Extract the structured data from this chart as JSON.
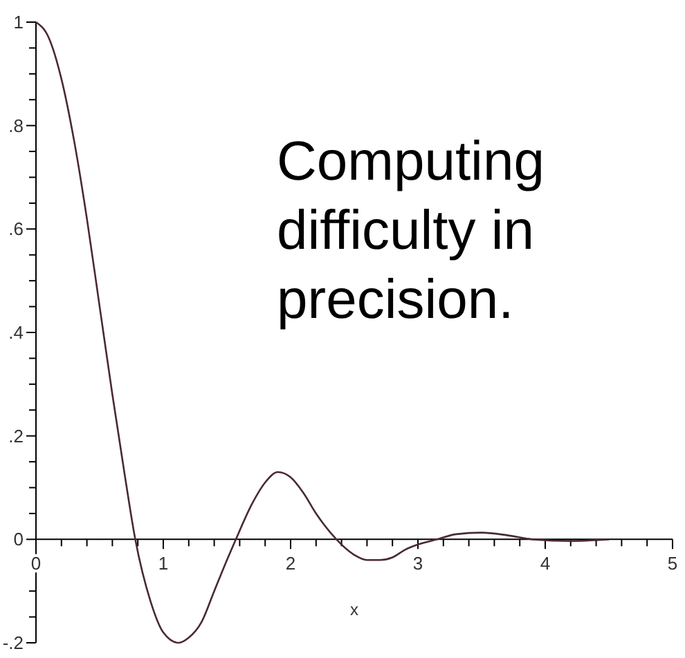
{
  "chart_data": {
    "type": "line",
    "xlabel": "x",
    "annotations": [
      "Computing",
      "difficulty in",
      "precision."
    ],
    "xlim": [
      0,
      5
    ],
    "ylim": [
      -0.2,
      1
    ],
    "xticks": [
      0,
      {
        "value": 0.2,
        "label": null
      },
      {
        "value": 0.4,
        "label": null
      },
      {
        "value": 0.6,
        "label": null
      },
      {
        "value": 0.8,
        "label": null
      },
      1,
      {
        "value": 1.2,
        "label": null
      },
      {
        "value": 1.4,
        "label": null
      },
      {
        "value": 1.6,
        "label": null
      },
      {
        "value": 1.8,
        "label": null
      },
      2,
      {
        "value": 2.2,
        "label": null
      },
      {
        "value": 2.4,
        "label": null
      },
      {
        "value": 2.6,
        "label": null
      },
      {
        "value": 2.8,
        "label": null
      },
      3,
      {
        "value": 3.2,
        "label": null
      },
      {
        "value": 3.4,
        "label": null
      },
      {
        "value": 3.6,
        "label": null
      },
      {
        "value": 3.8,
        "label": null
      },
      4,
      {
        "value": 4.2,
        "label": null
      },
      {
        "value": 4.4,
        "label": null
      },
      {
        "value": 4.6,
        "label": null
      },
      {
        "value": 4.8,
        "label": null
      },
      5
    ],
    "yticks": [
      {
        "value": -0.2,
        "label": "-.2"
      },
      {
        "value": -0.15,
        "label": null
      },
      {
        "value": -0.1,
        "label": null
      },
      {
        "value": -0.05,
        "label": null
      },
      0,
      {
        "value": 0.05,
        "label": null
      },
      {
        "value": 0.1,
        "label": null
      },
      {
        "value": 0.15,
        "label": null
      },
      {
        "value": 0.2,
        "label": ".2"
      },
      {
        "value": 0.25,
        "label": null
      },
      {
        "value": 0.3,
        "label": null
      },
      {
        "value": 0.35,
        "label": null
      },
      {
        "value": 0.4,
        "label": ".4"
      },
      {
        "value": 0.45,
        "label": null
      },
      {
        "value": 0.5,
        "label": null
      },
      {
        "value": 0.55,
        "label": null
      },
      {
        "value": 0.6,
        "label": ".6"
      },
      {
        "value": 0.65,
        "label": null
      },
      {
        "value": 0.7,
        "label": null
      },
      {
        "value": 0.75,
        "label": null
      },
      {
        "value": 0.8,
        "label": ".8"
      },
      {
        "value": 0.85,
        "label": null
      },
      {
        "value": 0.9,
        "label": null
      },
      {
        "value": 0.95,
        "label": null
      },
      1
    ],
    "series": [
      {
        "color": "#4a2a30",
        "x": [
          0,
          0.1,
          0.2,
          0.3,
          0.4,
          0.5,
          0.6,
          0.7,
          0.78,
          0.9,
          1.0,
          1.12,
          1.2,
          1.3,
          1.4,
          1.5,
          1.57,
          1.7,
          1.8,
          1.9,
          2.0,
          2.1,
          2.2,
          2.36,
          2.5,
          2.6,
          2.7,
          2.8,
          2.9,
          3.0,
          3.15,
          3.3,
          3.5,
          3.7,
          3.9,
          4.2,
          4.5
        ],
        "values": [
          1,
          0.97,
          0.89,
          0.77,
          0.62,
          0.45,
          0.28,
          0.12,
          0,
          -0.12,
          -0.18,
          -0.2,
          -0.19,
          -0.16,
          -0.1,
          -0.04,
          0,
          0.07,
          0.11,
          0.13,
          0.12,
          0.09,
          0.05,
          0,
          -0.03,
          -0.04,
          -0.04,
          -0.035,
          -0.02,
          -0.01,
          0,
          0.01,
          0.013,
          0.008,
          0,
          -0.003,
          0
        ]
      }
    ]
  }
}
